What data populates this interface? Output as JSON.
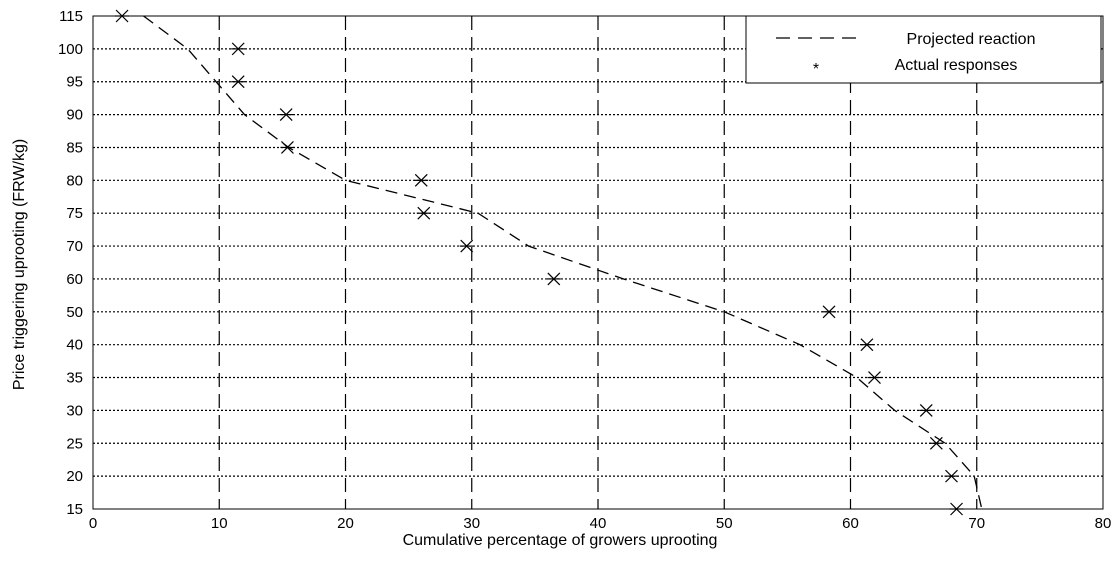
{
  "chart_data": {
    "type": "scatter",
    "xlabel": "Cumulative percentage of growers uprooting",
    "ylabel": "Price triggering uprooting (FRW/kg)",
    "xlim": [
      0,
      80
    ],
    "x_ticks": [
      0,
      10,
      20,
      30,
      40,
      50,
      60,
      70,
      80
    ],
    "y_ticks": [
      15,
      20,
      25,
      30,
      35,
      40,
      50,
      60,
      70,
      75,
      80,
      85,
      90,
      95,
      100,
      115
    ],
    "grid": true,
    "legend_position": "top-right",
    "series": [
      {
        "name": "Projected reaction",
        "style": "dashed-line",
        "color": "#000000",
        "points": [
          [
            4.0,
            115
          ],
          [
            7.5,
            100
          ],
          [
            12.0,
            90
          ],
          [
            15.5,
            85
          ],
          [
            20.0,
            80
          ],
          [
            30.5,
            75
          ],
          [
            34.5,
            70
          ],
          [
            42.0,
            60
          ],
          [
            50.0,
            50
          ],
          [
            56.0,
            40
          ],
          [
            60.5,
            35
          ],
          [
            63.5,
            30
          ],
          [
            67.5,
            25
          ],
          [
            69.8,
            20
          ],
          [
            70.4,
            15
          ]
        ]
      },
      {
        "name": "Actual responses",
        "style": "star-markers",
        "color": "#000000",
        "points": [
          [
            2.3,
            115
          ],
          [
            11.5,
            100
          ],
          [
            11.5,
            95
          ],
          [
            15.3,
            90
          ],
          [
            15.4,
            85
          ],
          [
            26.0,
            80
          ],
          [
            26.2,
            75
          ],
          [
            29.6,
            70
          ],
          [
            36.5,
            60
          ],
          [
            58.3,
            50
          ],
          [
            61.3,
            40
          ],
          [
            61.9,
            35
          ],
          [
            66.0,
            30
          ],
          [
            66.8,
            25
          ],
          [
            68.0,
            20
          ],
          [
            68.4,
            15
          ]
        ]
      }
    ]
  }
}
